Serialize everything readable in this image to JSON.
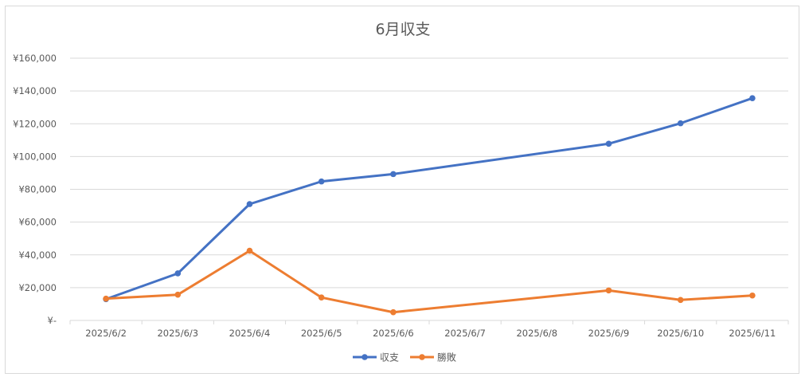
{
  "chart_data": {
    "type": "line",
    "title": "6月収支",
    "xlabel": "",
    "ylabel": "",
    "categories": [
      "2025/6/2",
      "2025/6/3",
      "2025/6/4",
      "2025/6/5",
      "2025/6/6",
      "2025/6/7",
      "2025/6/8",
      "2025/6/9",
      "2025/6/10",
      "2025/6/11"
    ],
    "y_tick_labels": [
      "¥-",
      "¥20,000",
      "¥40,000",
      "¥60,000",
      "¥80,000",
      "¥100,000",
      "¥120,000",
      "¥140,000",
      "¥160,000"
    ],
    "ylim": [
      0,
      160000
    ],
    "y_step": 20000,
    "grid": true,
    "legend_position": "bottom",
    "series": [
      {
        "name": "収支",
        "color": "#4472C4",
        "values": [
          13000,
          28700,
          71000,
          84800,
          89300,
          null,
          null,
          107800,
          120300,
          135600
        ]
      },
      {
        "name": "勝敗",
        "color": "#ED7D31",
        "values": [
          13300,
          15700,
          42500,
          14000,
          5000,
          null,
          null,
          18300,
          12500,
          15200
        ]
      }
    ]
  }
}
